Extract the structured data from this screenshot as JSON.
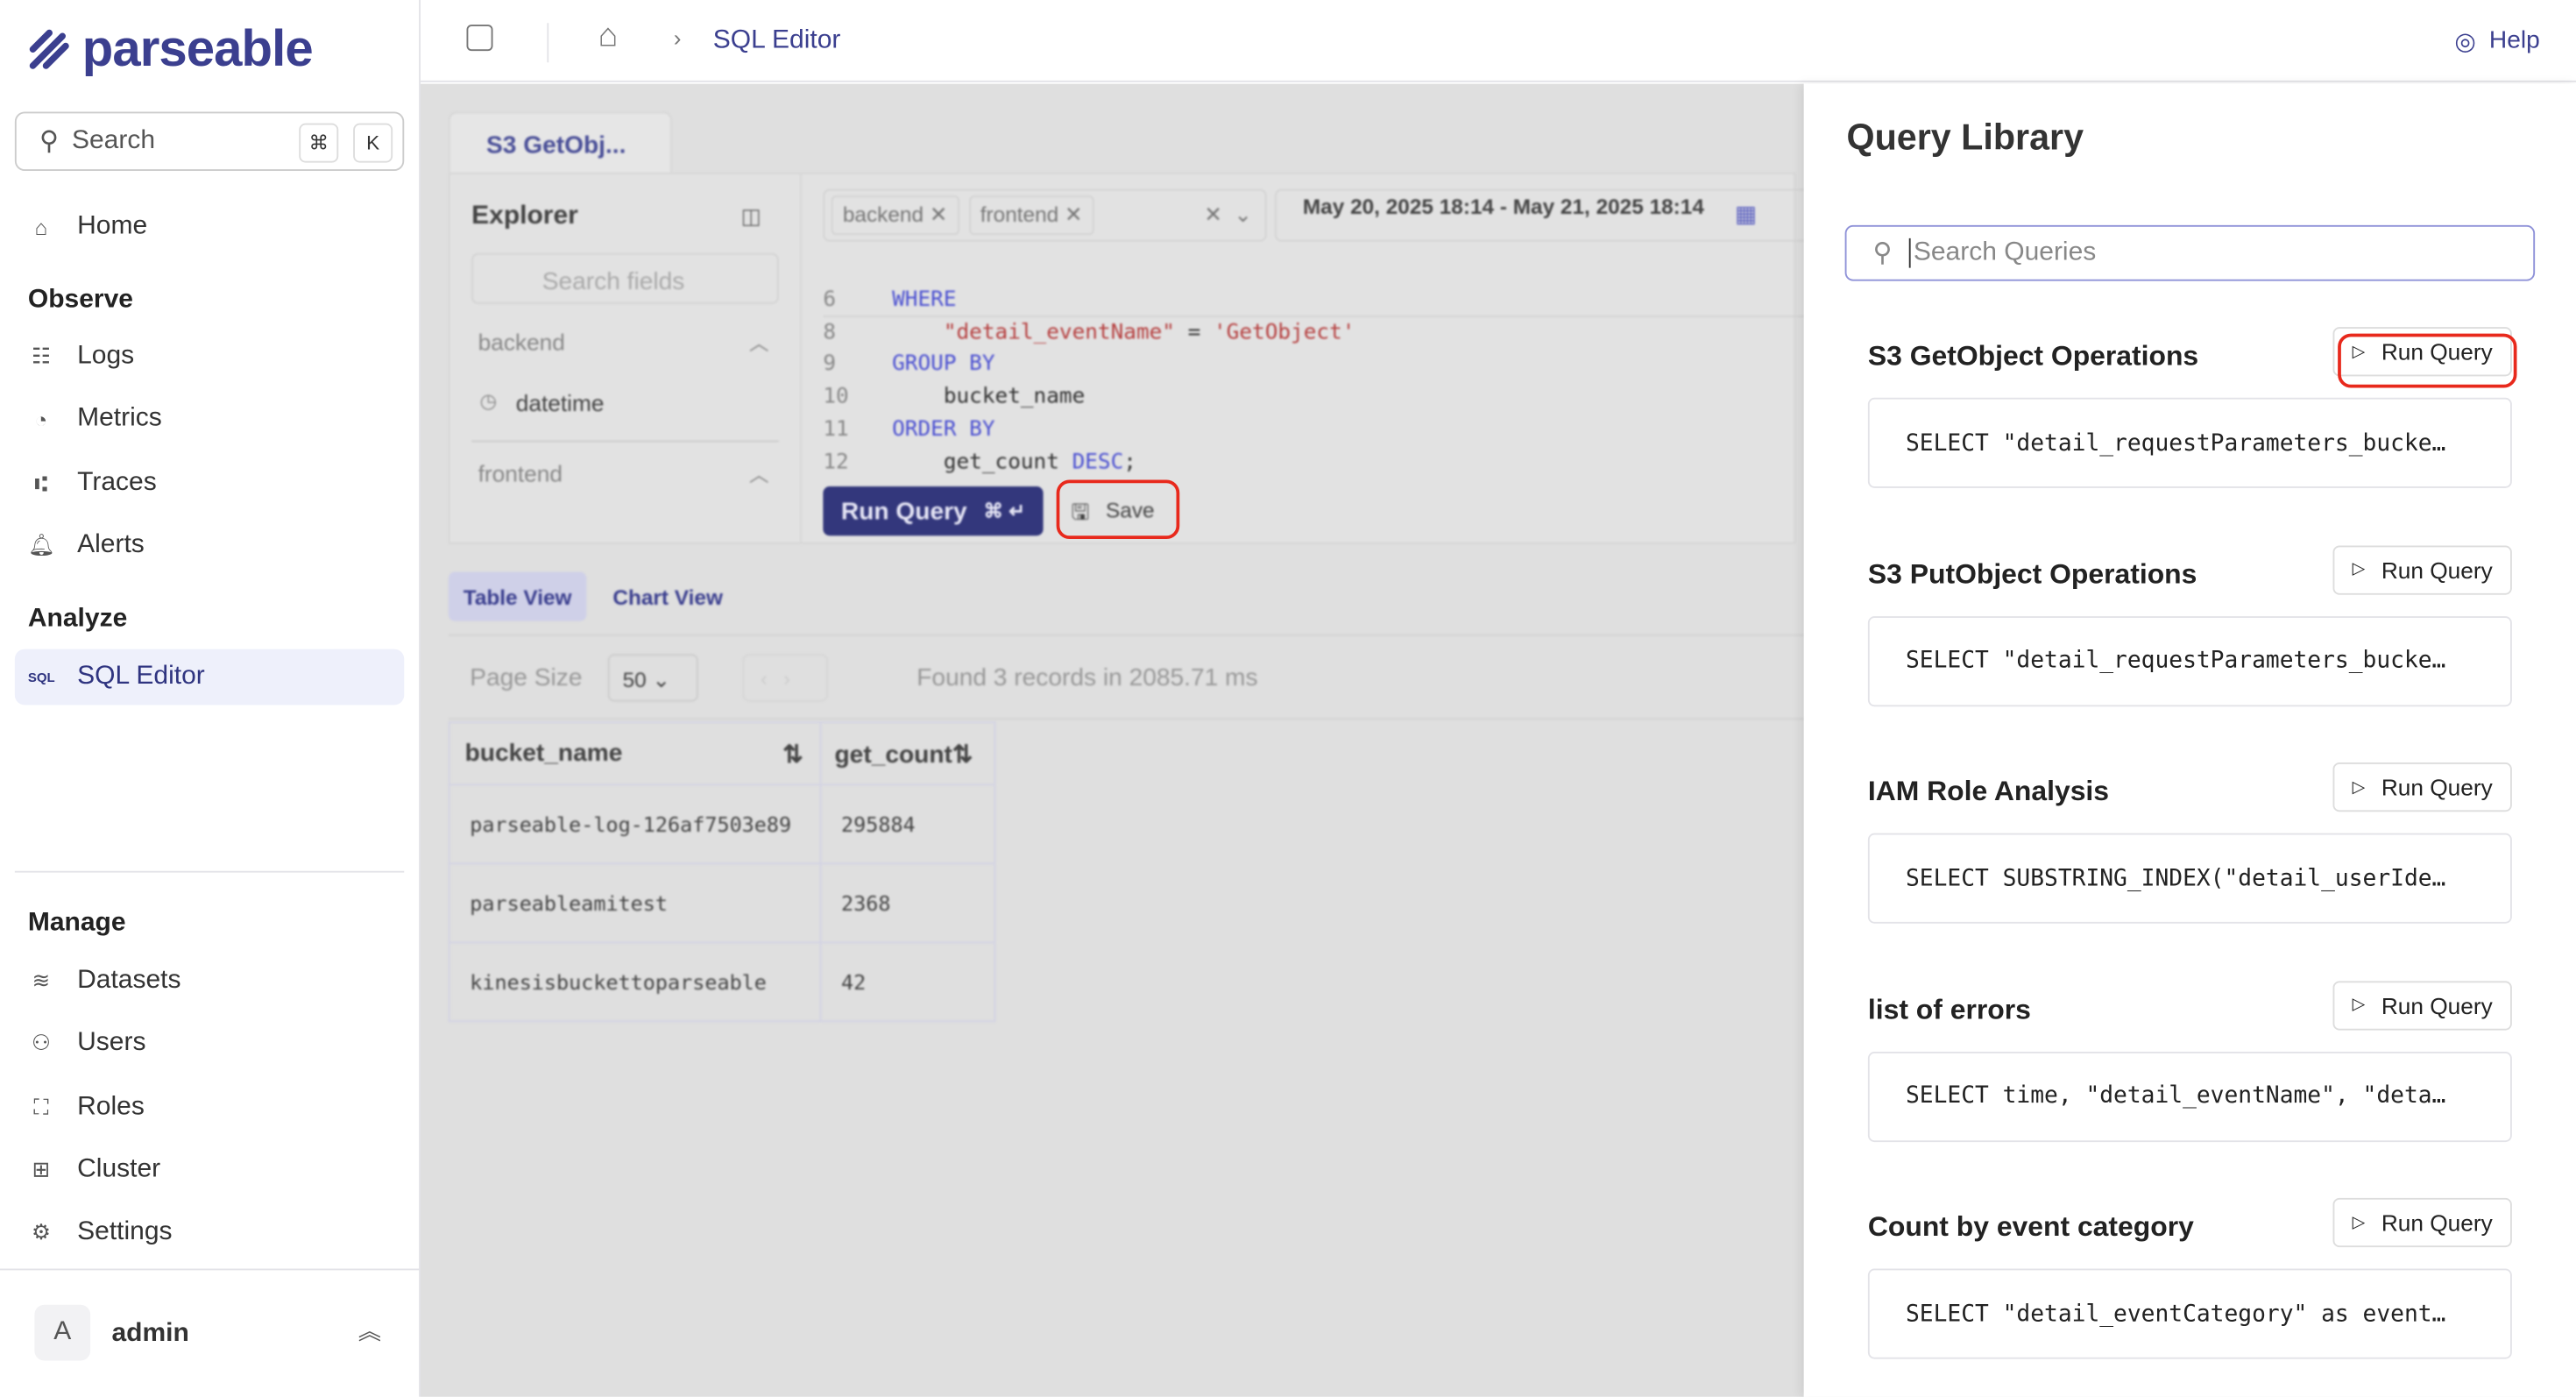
{
  "brand": {
    "name": "parseable"
  },
  "sidebar": {
    "search_placeholder": "Search",
    "shortcut_cmd": "⌘",
    "shortcut_key": "K",
    "home": "Home",
    "observe_label": "Observe",
    "observe": [
      {
        "label": "Logs",
        "icon": "logs-icon"
      },
      {
        "label": "Metrics",
        "icon": "gauge-icon"
      },
      {
        "label": "Traces",
        "icon": "traces-icon"
      },
      {
        "label": "Alerts",
        "icon": "bell-icon"
      }
    ],
    "analyze_label": "Analyze",
    "sql_editor": "SQL Editor",
    "sql_icon_text": "SQL",
    "manage_label": "Manage",
    "manage": [
      {
        "label": "Datasets"
      },
      {
        "label": "Users"
      },
      {
        "label": "Roles"
      },
      {
        "label": "Cluster"
      },
      {
        "label": "Settings"
      }
    ],
    "user": {
      "initial": "A",
      "name": "admin"
    }
  },
  "topbar": {
    "breadcrumb": "SQL Editor",
    "help": "Help"
  },
  "editor": {
    "tab": "S3 GetObj...",
    "explorer_title": "Explorer",
    "search_fields": "Search fields",
    "groups": [
      {
        "name": "backend",
        "field": "datetime"
      },
      {
        "name": "frontend"
      }
    ],
    "dataset_chips": [
      "backend",
      "frontend"
    ],
    "time_range": "May 20, 2025 18:14 - May 21, 2025 18:14",
    "code": [
      {
        "n": "6",
        "parts": [
          {
            "t": "WHERE",
            "c": "kw"
          }
        ]
      },
      {
        "n": "8",
        "parts": [
          {
            "t": "    \"detail_eventName\"",
            "c": "str"
          },
          {
            "t": " = ",
            "c": ""
          },
          {
            "t": "'GetObject'",
            "c": "str"
          }
        ]
      },
      {
        "n": "9",
        "parts": [
          {
            "t": "GROUP BY",
            "c": "kw"
          }
        ]
      },
      {
        "n": "10",
        "parts": [
          {
            "t": "    bucket_name",
            "c": ""
          }
        ]
      },
      {
        "n": "11",
        "parts": [
          {
            "t": "ORDER BY",
            "c": "kw"
          }
        ]
      },
      {
        "n": "12",
        "parts": [
          {
            "t": "    get_count ",
            "c": ""
          },
          {
            "t": "DESC",
            "c": "kw"
          },
          {
            "t": ";",
            "c": ""
          }
        ]
      }
    ],
    "run_query": "Run Query",
    "run_shortcut": "⌘ ↵",
    "save": "Save",
    "views": [
      "Table View",
      "Chart View"
    ],
    "page_size_label": "Page Size",
    "page_size": "50",
    "result_info": "Found 3 records in 2085.71 ms",
    "table": {
      "columns": [
        "bucket_name",
        "get_count"
      ],
      "rows": [
        [
          "parseable-log-126af7503e89",
          "295884"
        ],
        [
          "parseableamitest",
          "2368"
        ],
        [
          "kinesisbuckettoparseable",
          "42"
        ]
      ]
    }
  },
  "library": {
    "title": "Query Library",
    "search_placeholder": "Search Queries",
    "run_label": "Run Query",
    "queries": [
      {
        "title": "S3 GetObject Operations",
        "sql": "SELECT \"detail_requestParameters_bucke…"
      },
      {
        "title": "S3 PutObject Operations",
        "sql": "SELECT \"detail_requestParameters_bucke…"
      },
      {
        "title": "IAM Role Analysis",
        "sql": "SELECT SUBSTRING_INDEX(\"detail_userIde…"
      },
      {
        "title": "list of errors",
        "sql": "SELECT time, \"detail_eventName\", \"deta…"
      },
      {
        "title": "Count by event category",
        "sql": "SELECT \"detail_eventCategory\" as event…"
      }
    ]
  },
  "colors": {
    "brand": "#3b3f8f",
    "highlight": "#e8291c",
    "accent": "#8f92d8"
  }
}
